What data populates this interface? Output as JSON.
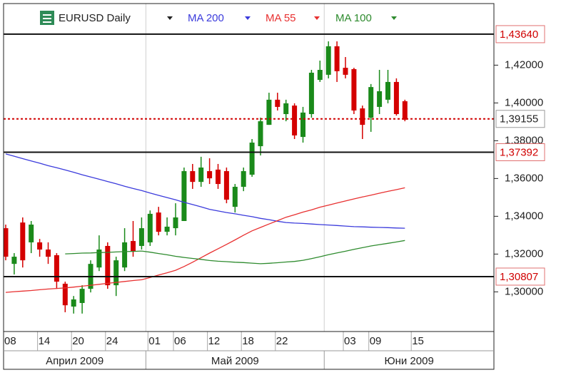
{
  "chart_data": {
    "type": "candlestick",
    "title": "EURUSD Daily",
    "categories": [
      "08",
      null,
      null,
      null,
      "14",
      null,
      null,
      null,
      "20",
      null,
      null,
      null,
      "24",
      null,
      null,
      null,
      null,
      "01",
      null,
      null,
      "06",
      null,
      null,
      null,
      "12",
      null,
      null,
      null,
      "18",
      null,
      null,
      null,
      "22",
      null,
      null,
      null,
      null,
      null,
      null,
      null,
      "03",
      null,
      null,
      "09",
      null,
      null,
      null,
      null,
      "15"
    ],
    "months": [
      "Април 2009",
      "Май 2009",
      "Юни 2009"
    ],
    "open": [
      1.3337,
      1.3148,
      1.3367,
      1.3262,
      1.3262,
      1.3224,
      1.3194,
      1.3043,
      1.2922,
      1.2941,
      1.3016,
      1.3129,
      1.3243,
      1.3035,
      1.3129,
      1.3269,
      1.3243,
      1.3262,
      1.342,
      1.3318,
      1.3337,
      1.3375,
      1.3639,
      1.3582,
      1.3639,
      1.3647,
      1.3639,
      1.345,
      1.3556,
      1.362,
      1.3771,
      1.3884,
      1.4017,
      1.3941,
      1.3986,
      1.382,
      1.3941,
      1.4122,
      1.4149,
      1.43,
      1.4186,
      1.4179,
      1.3971,
      1.3922,
      1.3979,
      1.4017,
      1.4111,
      1.4009,
      null
    ],
    "high": [
      1.3356,
      1.3205,
      1.3394,
      1.3375,
      1.328,
      1.3262,
      1.3205,
      1.3054,
      1.2978,
      1.3035,
      1.3167,
      1.3299,
      1.3262,
      1.3186,
      1.3337,
      1.3375,
      1.3394,
      1.3431,
      1.345,
      1.3394,
      1.3469,
      1.3658,
      1.3677,
      1.3715,
      1.3707,
      1.3677,
      1.3658,
      1.3571,
      1.3658,
      1.3809,
      1.3922,
      1.4054,
      1.4054,
      1.4017,
      1.3998,
      1.3979,
      1.4175,
      1.4224,
      1.4326,
      1.4326,
      1.4243,
      1.4186,
      1.3986,
      1.41,
      1.4175,
      1.4175,
      1.413,
      1.4017,
      null
    ],
    "low": [
      1.3167,
      1.3092,
      1.3129,
      1.3205,
      1.3186,
      1.3148,
      1.3016,
      1.2892,
      1.2885,
      1.2885,
      1.2997,
      1.311,
      1.3016,
      1.2978,
      1.311,
      1.3186,
      1.3224,
      1.3243,
      1.3299,
      1.3299,
      1.3299,
      1.3375,
      1.3545,
      1.3556,
      1.3571,
      1.3545,
      1.3469,
      1.342,
      1.3533,
      1.3609,
      1.3722,
      1.3884,
      1.396,
      1.3903,
      1.3809,
      1.379,
      1.3922,
      1.4111,
      1.413,
      1.4111,
      1.413,
      1.3941,
      1.3809,
      1.3847,
      1.3941,
      1.3998,
      1.3933,
      1.3903,
      null
    ],
    "close": [
      1.3186,
      1.3186,
      1.3167,
      1.3356,
      1.3224,
      1.3186,
      1.3054,
      1.2929,
      1.296,
      1.3016,
      1.3148,
      1.3224,
      1.3035,
      1.3167,
      1.3262,
      1.3216,
      1.3337,
      1.3413,
      1.3318,
      1.3345,
      1.3394,
      1.3639,
      1.3582,
      1.3658,
      1.3601,
      1.3571,
      1.3488,
      1.3556,
      1.3639,
      1.379,
      1.3903,
      1.4017,
      1.3979,
      1.3998,
      1.3828,
      1.3949,
      1.416,
      1.4175,
      1.43,
      1.4168,
      1.4149,
      1.396,
      1.3884,
      1.4084,
      1.4062,
      1.4111,
      1.3941,
      1.3911,
      null
    ],
    "up_color": "#1a8a1a",
    "down_color": "#d40000",
    "series": [
      {
        "name": "MA 200",
        "color": "#3b3bdc",
        "values": [
          1.373,
          1.3718,
          1.3705,
          1.3693,
          1.3681,
          1.3668,
          1.3657,
          1.3645,
          1.3633,
          1.362,
          1.3608,
          1.3596,
          1.3584,
          1.3572,
          1.3559,
          1.3547,
          1.3536,
          1.3523,
          1.3511,
          1.3499,
          1.3487,
          1.3474,
          1.3462,
          1.345,
          1.3437,
          1.3428,
          1.342,
          1.3413,
          1.3405,
          1.3398,
          1.3389,
          1.3382,
          1.3374,
          1.3367,
          1.3364,
          1.3362,
          1.3359,
          1.3356,
          1.3354,
          1.3351,
          1.3348,
          1.3345,
          1.3344,
          1.3342,
          1.3341,
          1.334,
          1.3338,
          1.3337,
          null
        ]
      },
      {
        "name": "MA 55",
        "color": "#e83030",
        "values": [
          1.2997,
          1.3001,
          1.3004,
          1.3007,
          1.3011,
          1.3015,
          1.3018,
          1.3021,
          1.3025,
          1.303,
          1.3035,
          1.304,
          1.3045,
          1.305,
          1.3055,
          1.306,
          1.3064,
          1.3076,
          1.3089,
          1.3101,
          1.3114,
          1.3134,
          1.3157,
          1.3181,
          1.3205,
          1.3228,
          1.3251,
          1.3275,
          1.33,
          1.3323,
          1.3341,
          1.3359,
          1.3377,
          1.3395,
          1.3408,
          1.3422,
          1.3434,
          1.3448,
          1.3459,
          1.347,
          1.3481,
          1.3492,
          1.3502,
          1.3512,
          1.3522,
          1.3532,
          1.3541,
          1.3551,
          null
        ]
      },
      {
        "name": "MA 100",
        "color": "#2e8b2e",
        "values": [
          null,
          null,
          null,
          null,
          null,
          null,
          null,
          1.3201,
          1.3203,
          1.3205,
          1.3206,
          1.3208,
          1.3209,
          1.3211,
          1.3213,
          1.3214,
          1.3216,
          1.321,
          1.3203,
          1.3196,
          1.3188,
          1.3182,
          1.3177,
          1.3172,
          1.3166,
          1.3162,
          1.316,
          1.3157,
          1.3155,
          1.3152,
          1.3149,
          1.3151,
          1.3154,
          1.3158,
          1.3161,
          1.3167,
          1.3176,
          1.3186,
          1.3197,
          1.3206,
          1.3215,
          1.3225,
          1.3234,
          1.3243,
          1.325,
          1.3257,
          1.3264,
          1.3272,
          null
        ]
      }
    ],
    "ylim": [
      1.279,
      1.4526
    ],
    "yticks": [
      {
        "value": 1.3,
        "label": "1,30000"
      },
      {
        "value": 1.32,
        "label": "1,32000"
      },
      {
        "value": 1.34,
        "label": "1,34000"
      },
      {
        "value": 1.36,
        "label": "1,36000"
      },
      {
        "value": 1.38,
        "label": "1,38000"
      },
      {
        "value": 1.4,
        "label": "1,40000"
      },
      {
        "value": 1.42,
        "label": "1,42000"
      }
    ],
    "levels": [
      {
        "value": 1.4364,
        "label": "1,43640"
      },
      {
        "value": 1.37392,
        "label": "1,37392"
      },
      {
        "value": 1.30807,
        "label": "1,30807"
      }
    ],
    "current": {
      "value": 1.39155,
      "label": "1,39155"
    }
  }
}
